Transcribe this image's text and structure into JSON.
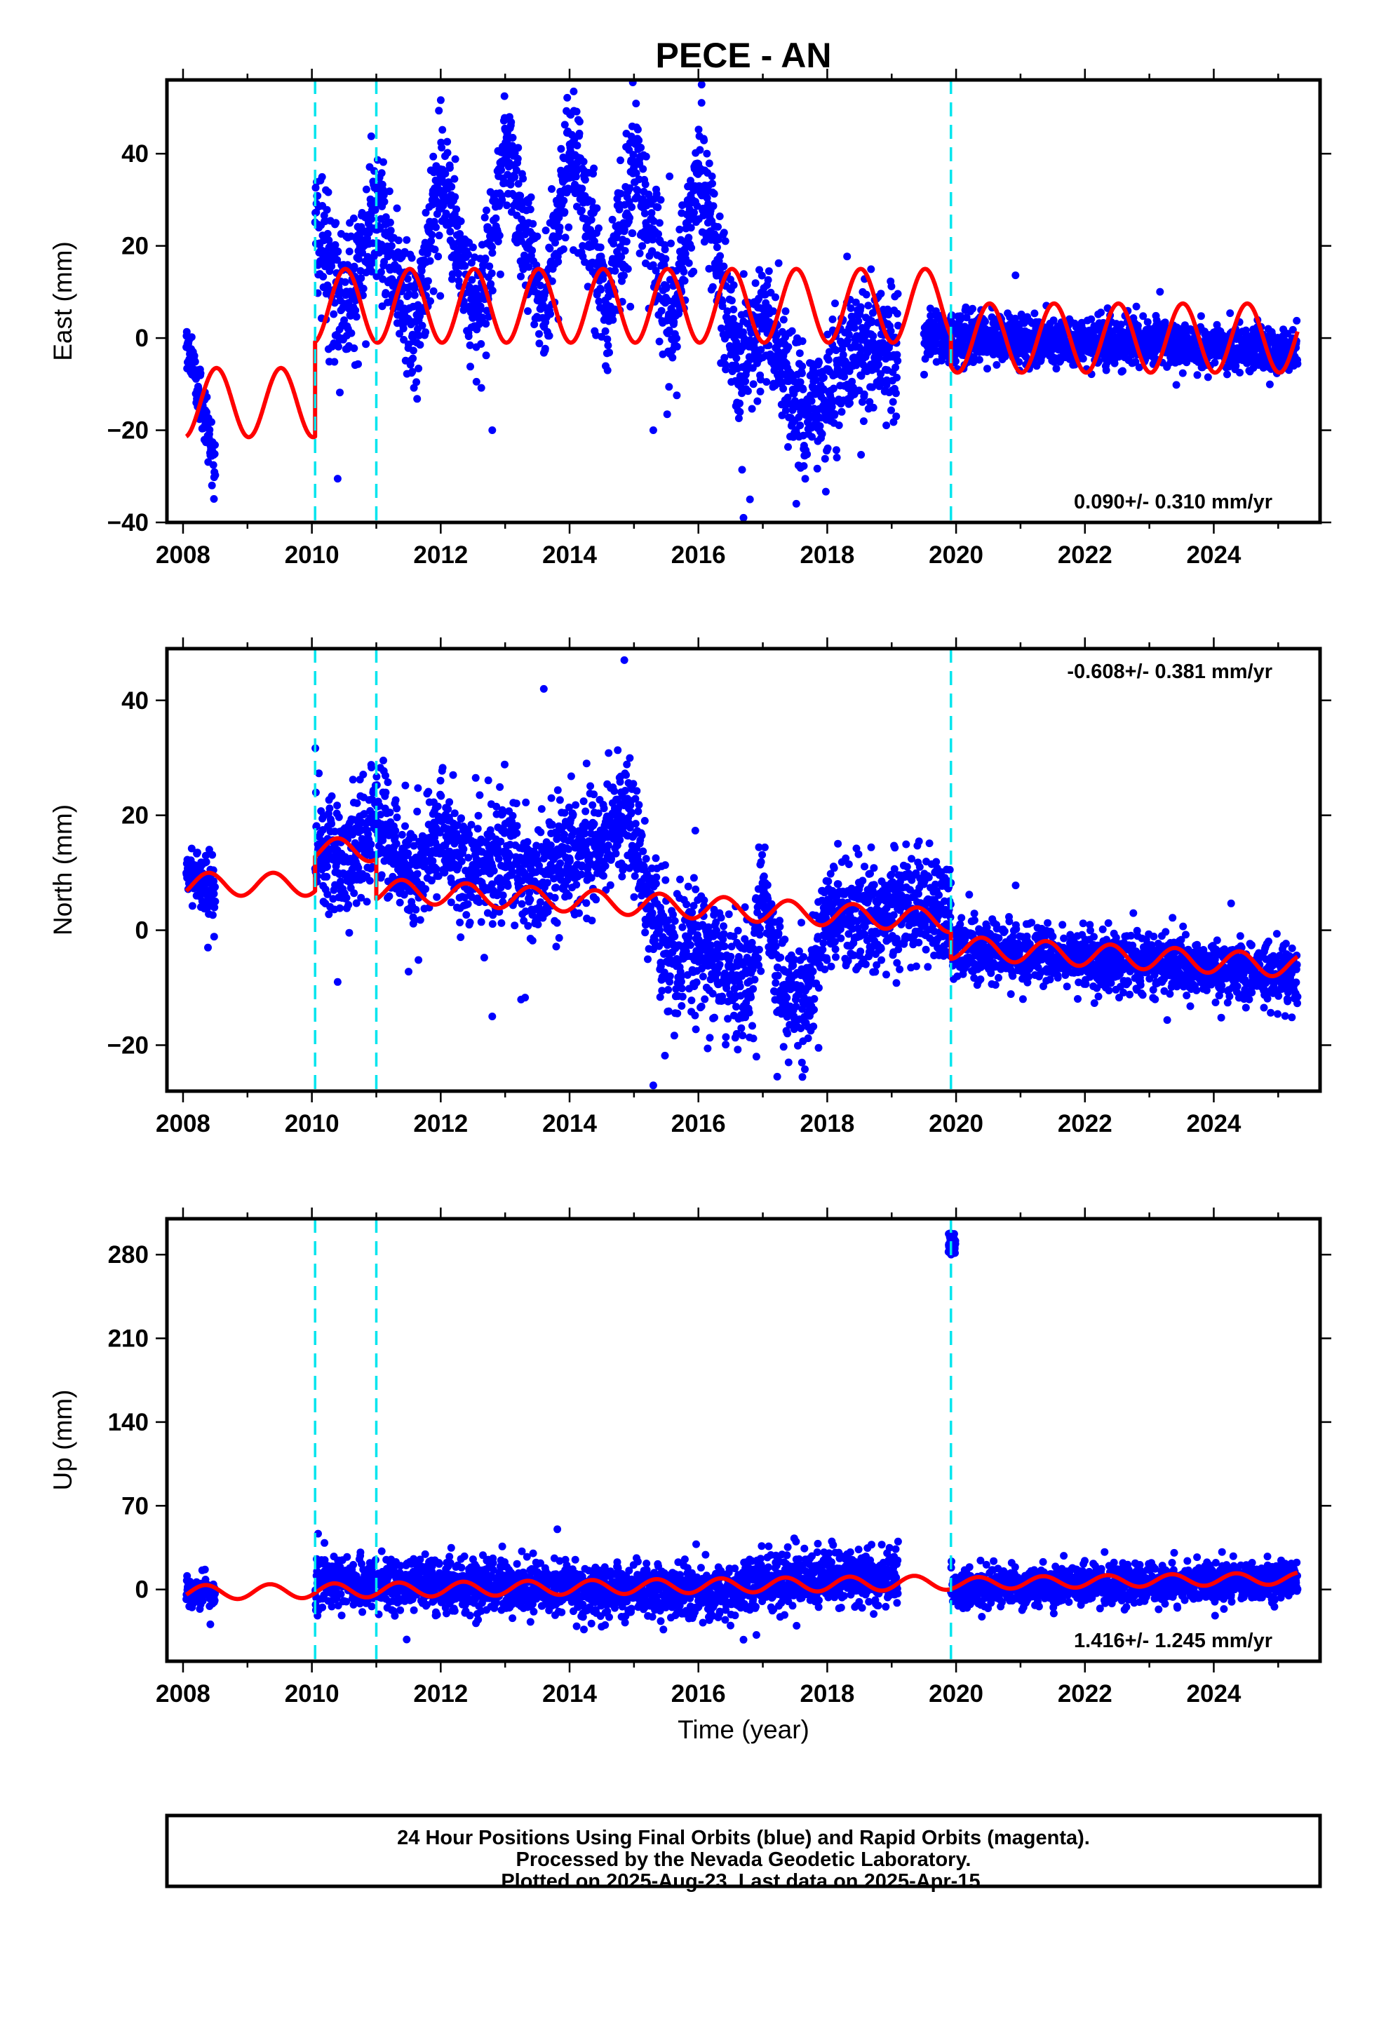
{
  "figure": {
    "title": "PECE - AN",
    "xlabel": "Time (year)",
    "footer": [
      "24 Hour Positions Using Final Orbits (blue) and Rapid Orbits (magenta).",
      "Processed by the Nevada Geodetic Laboratory.",
      "Plotted on 2025-Aug-23. Last data on 2025-Apr-15."
    ]
  },
  "colors": {
    "points": "#0000ff",
    "model": "#ff0000",
    "steps": "#00e5ee",
    "frame": "#000000"
  },
  "chart_data": [
    {
      "type": "scatter",
      "panel": "east",
      "ylabel": "East (mm)",
      "rate": "0.090+/- 0.310 mm/yr",
      "rate_position": "bottom-right",
      "xlim": [
        2007.75,
        2025.65
      ],
      "ylim": [
        -40,
        56
      ],
      "xticks": [
        "2008",
        "2010",
        "2012",
        "2014",
        "2016",
        "2018",
        "2020",
        "2022",
        "2024"
      ],
      "yticks": [
        "−40",
        "−20",
        "0",
        "20",
        "40"
      ],
      "step_lines": [
        2010.05,
        2011.0,
        2019.92
      ],
      "data_span": [
        2008.05,
        2025.3
      ],
      "observations": {
        "name": "daily positions",
        "segments": [
          {
            "start": 2008.05,
            "end": 2008.5,
            "mean": [
              [
                2008.05,
                0
              ],
              [
                2008.25,
                -12
              ],
              [
                2008.48,
                -27
              ]
            ],
            "spread": 3
          },
          {
            "start": 2010.05,
            "end": 2019.1,
            "mean": [
              [
                2010.05,
                26
              ],
              [
                2010.5,
                4
              ],
              [
                2011.0,
                28
              ],
              [
                2011.6,
                0
              ],
              [
                2012.0,
                36
              ],
              [
                2012.6,
                3
              ],
              [
                2013.0,
                42
              ],
              [
                2013.6,
                6
              ],
              [
                2014.0,
                42
              ],
              [
                2014.6,
                6
              ],
              [
                2015.0,
                38
              ],
              [
                2015.6,
                2
              ],
              [
                2016.0,
                38
              ],
              [
                2016.6,
                -4
              ],
              [
                2017.0,
                2
              ],
              [
                2017.3,
                -6
              ],
              [
                2017.5,
                -14
              ],
              [
                2018.0,
                -15
              ],
              [
                2018.2,
                -6
              ],
              [
                2018.5,
                -3
              ],
              [
                2019.1,
                -2
              ]
            ],
            "spread": 7
          },
          {
            "start": 2019.5,
            "end": 2025.3,
            "mean": [
              [
                2019.5,
                0
              ],
              [
                2022.5,
                -1
              ],
              [
                2025.3,
                -3
              ]
            ],
            "spread": 2.5
          }
        ],
        "outliers": [
          [
            2010.4,
            -30.5
          ],
          [
            2012.8,
            -20
          ],
          [
            2015.3,
            -20
          ],
          [
            2016.7,
            -39
          ],
          [
            2016.8,
            -35
          ],
          [
            2016.05,
            55
          ]
        ]
      },
      "model": {
        "name": "model fit",
        "segments": [
          {
            "start": 2008.05,
            "end": 2010.05,
            "offset": -14,
            "trend": 0,
            "amp": 7.5,
            "phase": 0.27
          },
          {
            "start": 2010.05,
            "end": 2019.92,
            "offset": 7,
            "trend": 0,
            "amp": 8,
            "phase": 0.27
          },
          {
            "start": 2019.92,
            "end": 2025.3,
            "offset": 0,
            "trend": 0,
            "amp": 7.5,
            "phase": 0.27
          }
        ]
      }
    },
    {
      "type": "scatter",
      "panel": "north",
      "ylabel": "North (mm)",
      "rate": "-0.608+/- 0.381 mm/yr",
      "rate_position": "top-right",
      "xlim": [
        2007.75,
        2025.65
      ],
      "ylim": [
        -28,
        49
      ],
      "xticks": [
        "2008",
        "2010",
        "2012",
        "2014",
        "2016",
        "2018",
        "2020",
        "2022",
        "2024"
      ],
      "yticks": [
        "−20",
        "0",
        "20",
        "40"
      ],
      "step_lines": [
        2010.05,
        2011.0,
        2019.92
      ],
      "data_span": [
        2008.05,
        2025.3
      ],
      "observations": {
        "name": "daily positions",
        "segments": [
          {
            "start": 2008.05,
            "end": 2008.5,
            "mean": [
              [
                2008.05,
                11
              ],
              [
                2008.5,
                6
              ]
            ],
            "spread": 2.5
          },
          {
            "start": 2010.05,
            "end": 2019.92,
            "mean": [
              [
                2010.05,
                16
              ],
              [
                2010.5,
                11
              ],
              [
                2011.0,
                20
              ],
              [
                2011.5,
                8
              ],
              [
                2012.0,
                18
              ],
              [
                2012.5,
                10
              ],
              [
                2013.0,
                14
              ],
              [
                2013.5,
                8
              ],
              [
                2014.0,
                14
              ],
              [
                2014.5,
                14
              ],
              [
                2014.9,
                22
              ],
              [
                2015.2,
                5
              ],
              [
                2015.6,
                -5
              ],
              [
                2016.0,
                -2
              ],
              [
                2016.5,
                -8
              ],
              [
                2016.8,
                -10
              ],
              [
                2017.0,
                5
              ],
              [
                2017.3,
                -10
              ],
              [
                2017.7,
                -12
              ],
              [
                2018.0,
                3
              ],
              [
                2018.5,
                3
              ],
              [
                2019.0,
                3
              ],
              [
                2019.92,
                5
              ]
            ],
            "spread": 5
          },
          {
            "start": 2019.92,
            "end": 2025.3,
            "mean": [
              [
                2019.92,
                -3
              ],
              [
                2025.3,
                -8
              ]
            ],
            "spread": 2.5
          }
        ],
        "outliers": [
          [
            2010.4,
            -9
          ],
          [
            2012.8,
            -15
          ],
          [
            2015.3,
            -27
          ],
          [
            2014.85,
            47
          ],
          [
            2013.6,
            42
          ],
          [
            2016.9,
            -22
          ],
          [
            2017.4,
            -23
          ]
        ]
      },
      "model": {
        "name": "model fit",
        "segments": [
          {
            "start": 2008.05,
            "end": 2010.05,
            "offset": 8,
            "trend": 0,
            "amp": 2,
            "phase": 0.15
          },
          {
            "start": 2010.05,
            "end": 2011.0,
            "offset": 14,
            "trend": 0,
            "amp": 2,
            "phase": 0.15
          },
          {
            "start": 2011.0,
            "end": 2019.92,
            "offset": 7,
            "trend": -0.6,
            "amp": 2,
            "phase": 0.15
          },
          {
            "start": 2019.92,
            "end": 2025.3,
            "offset": -3,
            "trend": -0.6,
            "amp": 2,
            "phase": 0.15
          }
        ]
      }
    },
    {
      "type": "scatter",
      "panel": "up",
      "ylabel": "Up (mm)",
      "rate": "1.416+/- 1.245 mm/yr",
      "rate_position": "bottom-right",
      "xlim": [
        2007.75,
        2025.65
      ],
      "ylim": [
        -60,
        310
      ],
      "xticks": [
        "2008",
        "2010",
        "2012",
        "2014",
        "2016",
        "2018",
        "2020",
        "2022",
        "2024"
      ],
      "yticks": [
        "0",
        "70",
        "140",
        "210",
        "280"
      ],
      "step_lines": [
        2010.05,
        2011.0,
        2019.92
      ],
      "data_span": [
        2008.05,
        2025.3
      ],
      "observations": {
        "name": "daily positions",
        "segments": [
          {
            "start": 2008.05,
            "end": 2008.5,
            "mean": [
              [
                2008.05,
                0
              ],
              [
                2008.5,
                -3
              ]
            ],
            "spread": 6
          },
          {
            "start": 2010.05,
            "end": 2019.1,
            "mean": [
              [
                2010.05,
                5
              ],
              [
                2012.0,
                5
              ],
              [
                2014.0,
                0
              ],
              [
                2016.5,
                -3
              ],
              [
                2017.0,
                5
              ],
              [
                2018.0,
                10
              ],
              [
                2019.1,
                10
              ]
            ],
            "spread": 11
          },
          {
            "start": 2019.92,
            "end": 2025.3,
            "mean": [
              [
                2019.92,
                0
              ],
              [
                2025.3,
                8
              ]
            ],
            "spread": 8
          }
        ],
        "cluster": {
          "x": [
            2019.88,
            2019.99
          ],
          "y": [
            280,
            298
          ]
        },
        "outliers": [
          [
            2016.7,
            -42
          ],
          [
            2016.9,
            -38
          ]
        ]
      },
      "model": {
        "name": "model fit",
        "segments": [
          {
            "start": 2008.05,
            "end": 2019.92,
            "offset": -2.5,
            "trend": 0.7,
            "amp": 6,
            "phase": 0.1
          },
          {
            "start": 2019.92,
            "end": 2025.3,
            "offset": 5,
            "trend": 0.8,
            "amp": 5,
            "phase": 0.1
          }
        ]
      }
    }
  ]
}
